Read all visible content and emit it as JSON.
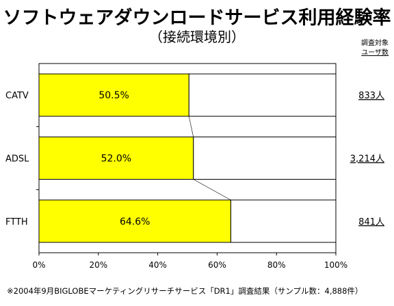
{
  "header": {
    "title": "ソフトウェアダウンロードサービス利用経験率",
    "subtitle": "（接続環境別）",
    "count_header_line1": "調査対象",
    "count_header_line2": "ユーザ数"
  },
  "footnote": "※2004年9月BIGLOBEマーケティングリサーチサービス「DR1」調査結果（サンプル数：4,888件）",
  "colors": {
    "bar": "#ffff00",
    "bar_stroke": "#000000"
  },
  "chart_data": {
    "type": "bar",
    "orientation": "horizontal",
    "title": "ソフトウェアダウンロードサービス利用経験率",
    "subtitle": "（接続環境別）",
    "categories": [
      "CATV",
      "ADSL",
      "FTTH"
    ],
    "values": [
      50.5,
      52.0,
      64.6
    ],
    "value_labels": [
      "50.5%",
      "52.0%",
      "64.6%"
    ],
    "counts": [
      "833人",
      "3,214人",
      "841人"
    ],
    "xlim": [
      0,
      100
    ],
    "xticks": [
      "0%",
      "20%",
      "40%",
      "60%",
      "80%",
      "100%"
    ],
    "stacked_to": 100,
    "series_lines": true,
    "grid": false,
    "legend": "none"
  }
}
